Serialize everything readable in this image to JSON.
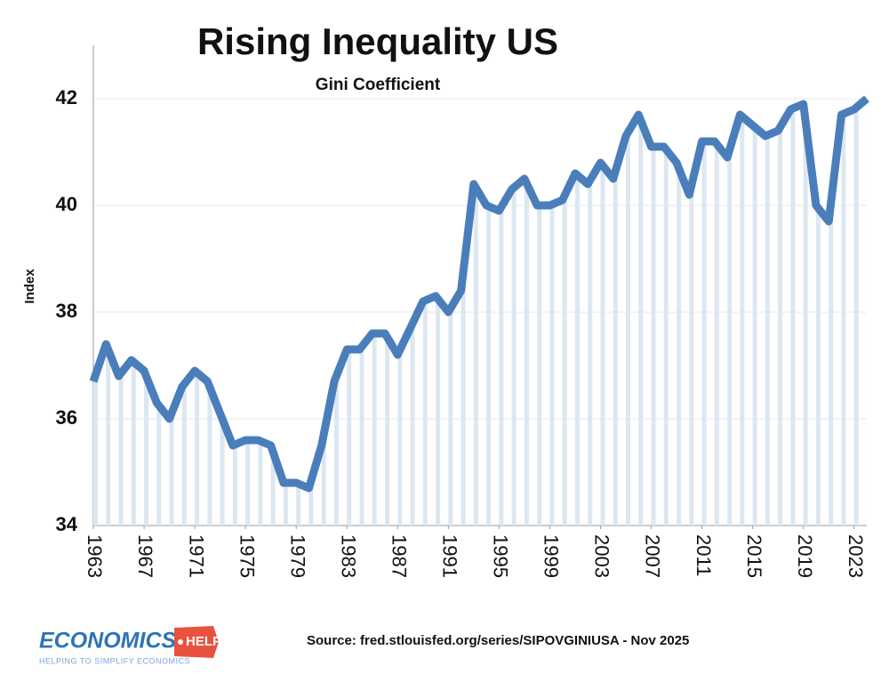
{
  "chart_data": {
    "type": "line",
    "title": "Rising Inequality US",
    "subtitle": "Gini Coefficient",
    "y_label": "Index",
    "x": [
      1963,
      1964,
      1965,
      1966,
      1967,
      1968,
      1969,
      1970,
      1971,
      1972,
      1973,
      1974,
      1975,
      1976,
      1977,
      1978,
      1979,
      1980,
      1981,
      1982,
      1983,
      1984,
      1985,
      1986,
      1987,
      1988,
      1989,
      1990,
      1991,
      1992,
      1993,
      1994,
      1995,
      1996,
      1997,
      1998,
      1999,
      2000,
      2001,
      2002,
      2003,
      2004,
      2005,
      2006,
      2007,
      2008,
      2009,
      2010,
      2011,
      2012,
      2013,
      2014,
      2015,
      2016,
      2017,
      2018,
      2019,
      2020,
      2021,
      2022,
      2023,
      2024
    ],
    "values": [
      36.7,
      37.4,
      36.8,
      37.1,
      36.9,
      36.3,
      36.0,
      36.6,
      36.9,
      36.7,
      36.1,
      35.5,
      35.6,
      35.6,
      35.5,
      34.8,
      34.8,
      34.7,
      35.5,
      36.7,
      37.3,
      37.3,
      37.6,
      37.6,
      37.2,
      37.7,
      38.2,
      38.3,
      38.0,
      38.4,
      40.4,
      40.0,
      39.9,
      40.3,
      40.5,
      40.0,
      40.0,
      40.1,
      40.6,
      40.4,
      40.8,
      40.5,
      41.3,
      41.7,
      41.1,
      41.1,
      40.8,
      40.2,
      41.2,
      41.2,
      40.9,
      41.7,
      41.5,
      41.3,
      41.4,
      41.8,
      41.9,
      40.0,
      39.7,
      41.7,
      41.8,
      42.0
    ],
    "color": "#4a7ebb",
    "area_color": "#dbe7f1",
    "xlim": [
      1963,
      2024
    ],
    "xticks": [
      1963,
      1967,
      1971,
      1975,
      1979,
      1983,
      1987,
      1991,
      1995,
      1999,
      2003,
      2007,
      2011,
      2015,
      2019,
      2023
    ],
    "ylim": [
      34,
      43
    ],
    "yticks": [
      34,
      36,
      38,
      40,
      42
    ],
    "grid": true
  },
  "source": "Source: fred.stlouisfed.org/series/SIPOVGINIUSA - Nov 2025",
  "logo": {
    "name": "ECONOMICS",
    "badge": "HELP",
    "tagline": "HELPING TO SIMPLIFY ECONOMICS"
  }
}
